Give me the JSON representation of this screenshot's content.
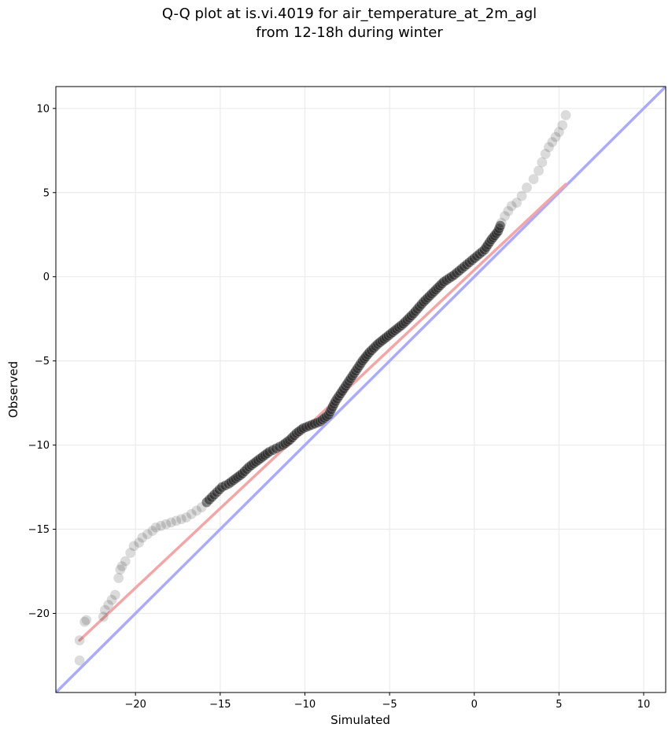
{
  "title_line1": "Q-Q plot at is.vi.4019 for air_temperature_at_2m_agl",
  "title_line2": "from 12-18h during winter",
  "chart_data": {
    "type": "scatter",
    "xlabel": "Simulated",
    "ylabel": "Observed",
    "xlim": [
      -24.7,
      11.3
    ],
    "ylim": [
      -24.7,
      11.3
    ],
    "xticks": [
      -20,
      -15,
      -10,
      -5,
      0,
      5,
      10
    ],
    "yticks": [
      -20,
      -15,
      -10,
      -5,
      0,
      5,
      10
    ],
    "grid": true,
    "identity_line": {
      "from": [
        -24.7,
        -24.7
      ],
      "to": [
        11.3,
        11.3
      ],
      "color": "#aaaaff"
    },
    "fit_line": {
      "from": [
        -23.3,
        -21.6
      ],
      "to": [
        5.4,
        5.5
      ],
      "color": "#f4a6a6"
    },
    "quantiles": {
      "x": [
        -23.3,
        -23.3,
        -23.0,
        -22.9,
        -21.9,
        -21.8,
        -21.6,
        -21.4,
        -21.2,
        -21.0,
        -20.9,
        -20.8,
        -20.6,
        -20.3,
        -20.1,
        -19.8,
        -19.6,
        -19.3,
        -19.0,
        -18.8,
        -18.5,
        -18.2,
        -17.9,
        -17.6,
        -17.3,
        -17.0,
        -16.7,
        -16.4,
        -16.1,
        -15.8,
        -15.5,
        -15.2,
        -14.9,
        -14.5,
        -14.1,
        -13.7,
        -13.3,
        -12.9,
        -12.5,
        -12.1,
        -11.7,
        -11.3,
        -10.9,
        -10.5,
        -10.1,
        -9.6,
        -9.1,
        -8.6,
        -8.2,
        -7.8,
        -7.4,
        -7.0,
        -6.6,
        -6.2,
        -5.7,
        -5.2,
        -4.7,
        -4.2,
        -3.6,
        -3.0,
        -2.4,
        -1.8,
        -1.2,
        -0.6,
        0.0,
        0.6,
        1.0,
        1.4,
        1.6,
        1.8,
        2.0,
        2.2,
        2.5,
        2.8,
        3.1,
        3.5,
        3.8,
        4.0,
        4.2,
        4.4,
        4.6,
        4.8,
        5.0,
        5.2,
        5.4
      ],
      "y": [
        -22.8,
        -21.6,
        -20.5,
        -20.4,
        -20.2,
        -19.8,
        -19.5,
        -19.2,
        -18.9,
        -17.9,
        -17.4,
        -17.2,
        -16.9,
        -16.4,
        -16.0,
        -15.8,
        -15.5,
        -15.3,
        -15.1,
        -14.9,
        -14.8,
        -14.7,
        -14.6,
        -14.5,
        -14.4,
        -14.3,
        -14.1,
        -13.9,
        -13.7,
        -13.4,
        -13.1,
        -12.8,
        -12.5,
        -12.3,
        -12.0,
        -11.7,
        -11.3,
        -11.0,
        -10.7,
        -10.4,
        -10.2,
        -10.0,
        -9.7,
        -9.3,
        -9.0,
        -8.8,
        -8.6,
        -8.2,
        -7.4,
        -6.8,
        -6.2,
        -5.6,
        -5.0,
        -4.5,
        -4.0,
        -3.6,
        -3.2,
        -2.8,
        -2.2,
        -1.5,
        -0.9,
        -0.3,
        0.1,
        0.6,
        1.1,
        1.6,
        2.2,
        2.7,
        3.2,
        3.6,
        3.9,
        4.2,
        4.4,
        4.8,
        5.3,
        5.8,
        6.3,
        6.8,
        7.3,
        7.7,
        8.0,
        8.3,
        8.6,
        9.0,
        9.6
      ]
    }
  }
}
